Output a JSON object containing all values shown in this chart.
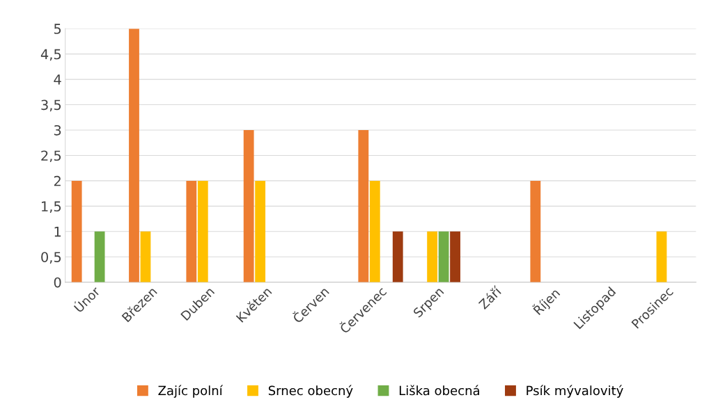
{
  "chart_data": {
    "type": "bar",
    "categories": [
      "Únor",
      "Březen",
      "Duben",
      "Květen",
      "Červen",
      "Červenec",
      "Srpen",
      "Září",
      "Říjen",
      "Listopad",
      "Prosinec"
    ],
    "series": [
      {
        "name": "Zajíc polní",
        "color": "#ed7d31",
        "values": [
          2,
          5,
          2,
          3,
          0,
          3,
          0,
          0,
          2,
          0,
          0
        ]
      },
      {
        "name": "Srnec obecný",
        "color": "#ffc000",
        "values": [
          0,
          1,
          2,
          2,
          0,
          2,
          1,
          0,
          0,
          0,
          1
        ]
      },
      {
        "name": "Liška obecná",
        "color": "#70ad47",
        "values": [
          1,
          0,
          0,
          0,
          0,
          0,
          1,
          0,
          0,
          0,
          0
        ]
      },
      {
        "name": "Psík mývalovitý",
        "color": "#9e3b10",
        "values": [
          0,
          0,
          0,
          0,
          0,
          1,
          1,
          0,
          0,
          0,
          0
        ]
      }
    ],
    "ylim": [
      0,
      5
    ],
    "yticks": [
      0,
      {
        "value": 0.5,
        "label": "0,5"
      },
      1,
      {
        "value": 1.5,
        "label": "1,5"
      },
      2,
      {
        "value": 2.5,
        "label": "2,5"
      },
      3,
      {
        "value": 3.5,
        "label": "3,5"
      },
      4,
      {
        "value": 4.5,
        "label": "4,5"
      },
      5
    ],
    "grid": "y",
    "legend": "bottom"
  }
}
